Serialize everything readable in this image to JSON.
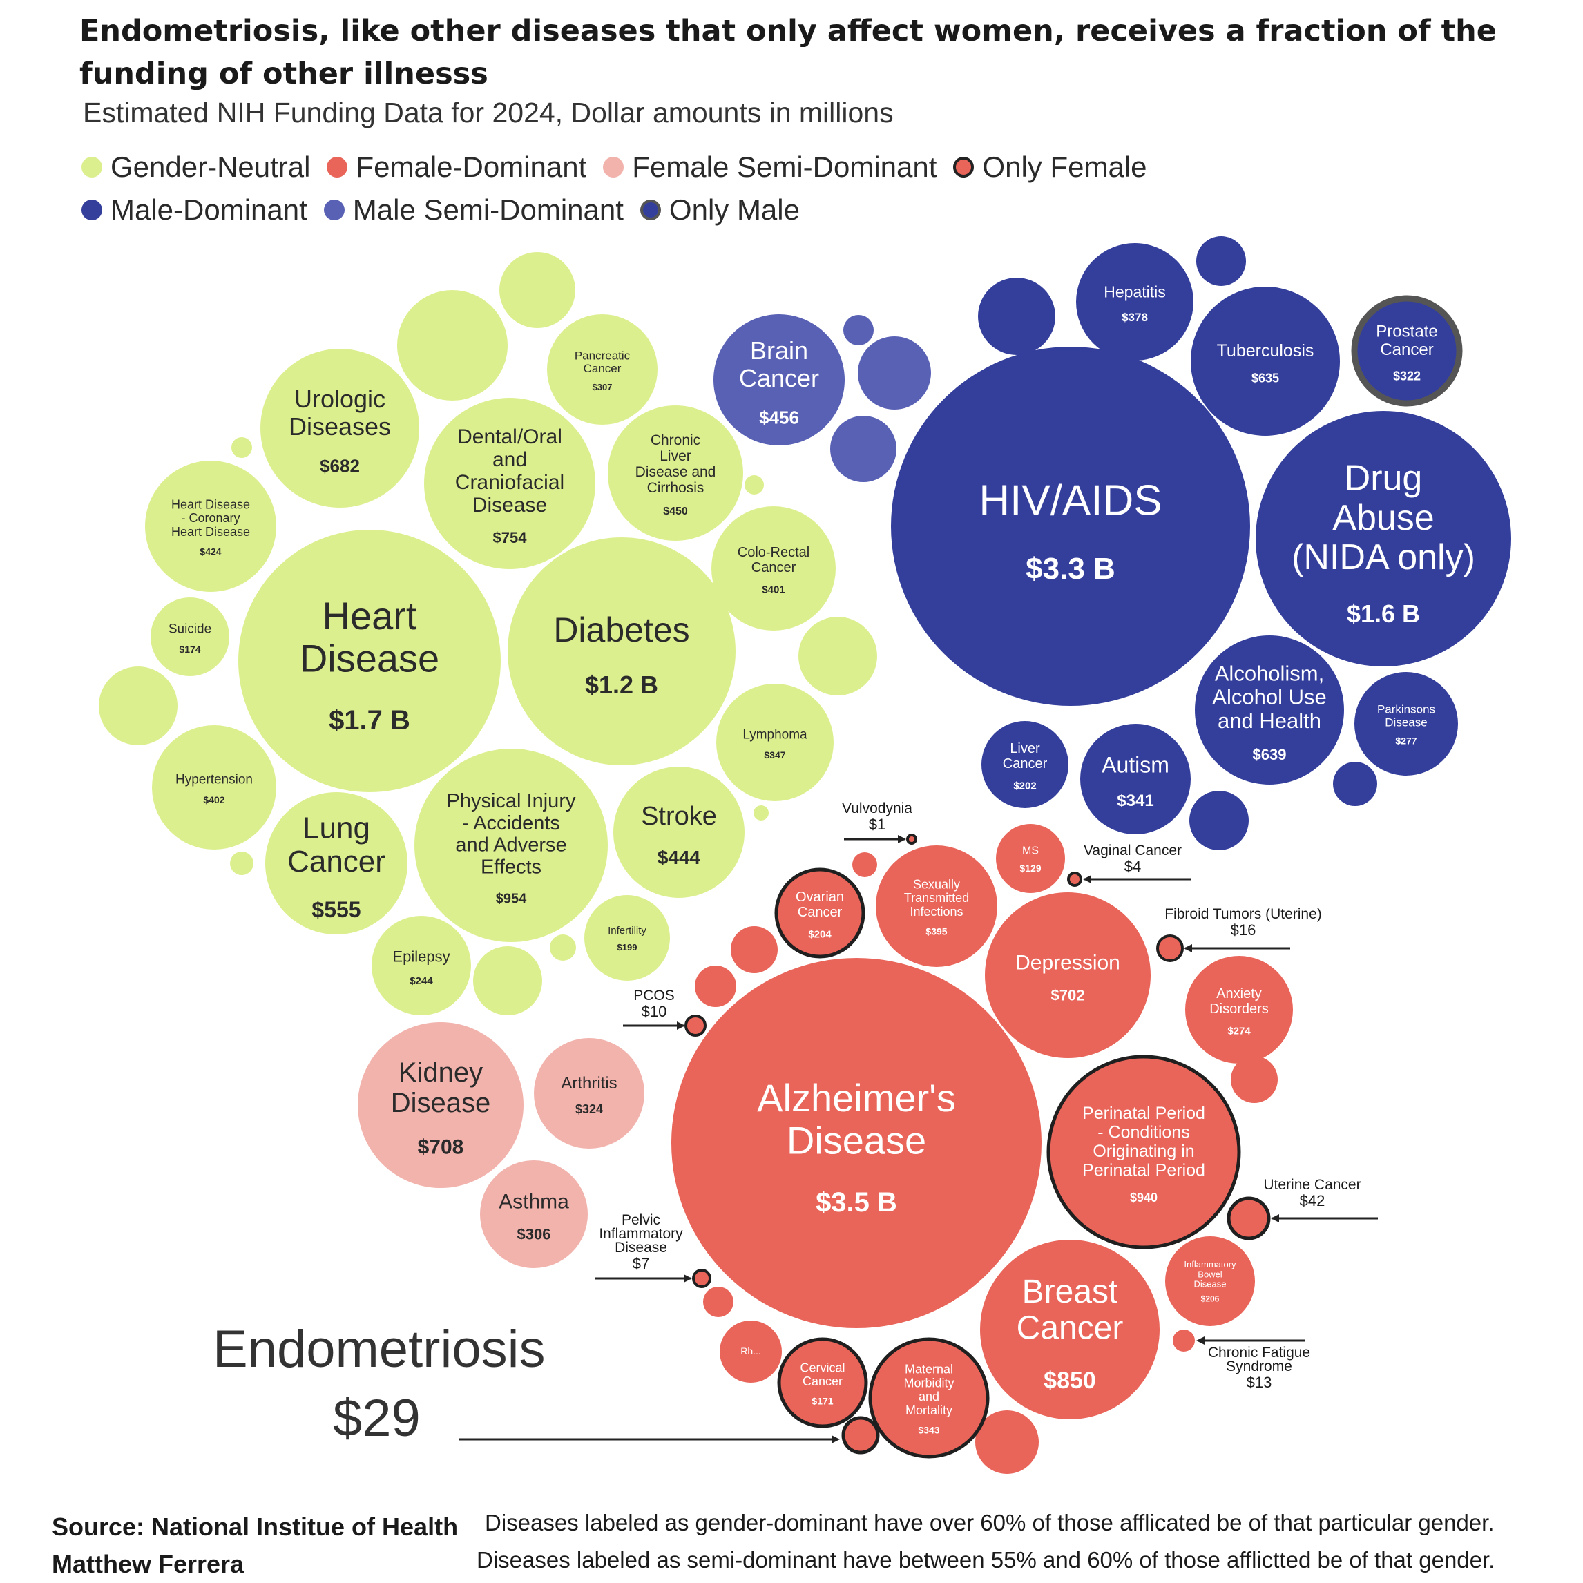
{
  "title": "Endometriosis, like other diseases that only affect women, receives a fraction of the funding of other illnesss",
  "subtitle": "Estimated NIH Funding Data for 2024, Dollar amounts in millions",
  "legend": [
    {
      "key": "gn",
      "label": "Gender-Neutral",
      "color": "#dcef8f"
    },
    {
      "key": "fd",
      "label": "Female-Dominant",
      "color": "#e9655a"
    },
    {
      "key": "fs",
      "label": "Female Semi-Dominant",
      "color": "#f2b3ad"
    },
    {
      "key": "of",
      "label": "Only Female",
      "color": "#e9655a",
      "outline": "#222222"
    },
    {
      "key": "md",
      "label": "Male-Dominant",
      "color": "#343f9c"
    },
    {
      "key": "ms",
      "label": "Male Semi-Dominant",
      "color": "#5961b5"
    },
    {
      "key": "om",
      "label": "Only Male",
      "color": "#343f9c",
      "outline": "#555555"
    }
  ],
  "colors": {
    "gn": "#dcef8f",
    "fd": "#e9655a",
    "fs": "#f2b3ad",
    "of": "#e9655a",
    "md": "#343f9c",
    "ms": "#5961b5",
    "om": "#343f9c",
    "text_dark": "#2b2b2b",
    "text_light": "#ffffff"
  },
  "chart_data": {
    "type": "bubble",
    "title": "Endometriosis, like other diseases that only affect women, receives a fraction of the funding of other illnesss",
    "subtitle": "Estimated NIH Funding Data for 2024, Dollar amounts in millions",
    "unit": "millions USD",
    "categories": [
      "Gender-Neutral",
      "Female-Dominant",
      "Female Semi-Dominant",
      "Only Female",
      "Male-Dominant",
      "Male Semi-Dominant",
      "Only Male"
    ],
    "bubbles": [
      {
        "name": "Heart Disease",
        "value": 1700,
        "value_label": "$1.7 B",
        "cat": "gn"
      },
      {
        "name": "Diabetes",
        "value": 1200,
        "value_label": "$1.2 B",
        "cat": "gn"
      },
      {
        "name": "Physical Injury - Accidents and Adverse Effects",
        "value": 954,
        "value_label": "$954",
        "cat": "gn"
      },
      {
        "name": "Dental/Oral and Craniofacial Disease",
        "value": 754,
        "value_label": "$754",
        "cat": "gn"
      },
      {
        "name": "Urologic Diseases",
        "value": 682,
        "value_label": "$682",
        "cat": "gn"
      },
      {
        "name": "Lung Cancer",
        "value": 555,
        "value_label": "$555",
        "cat": "gn"
      },
      {
        "name": "Chronic Liver Disease and Cirrhosis",
        "value": 450,
        "value_label": "$450",
        "cat": "gn"
      },
      {
        "name": "Stroke",
        "value": 444,
        "value_label": "$444",
        "cat": "gn"
      },
      {
        "name": "Heart Disease - Coronary Heart Disease",
        "value": 424,
        "value_label": "$424",
        "cat": "gn"
      },
      {
        "name": "Hypertension",
        "value": 402,
        "value_label": "$402",
        "cat": "gn"
      },
      {
        "name": "Colo-Rectal Cancer",
        "value": 401,
        "value_label": "$401",
        "cat": "gn"
      },
      {
        "name": "Lymphoma",
        "value": 347,
        "value_label": "$347",
        "cat": "gn"
      },
      {
        "name": "Pancreatic Cancer",
        "value": 307,
        "value_label": "$307",
        "cat": "gn"
      },
      {
        "name": "Epilepsy",
        "value": 244,
        "value_label": "$244",
        "cat": "gn"
      },
      {
        "name": "Infertility",
        "value": 199,
        "value_label": "$199",
        "cat": "gn"
      },
      {
        "name": "Suicide",
        "value": 174,
        "value_label": "$174",
        "cat": "gn"
      },
      {
        "name": "HIV/AIDS",
        "value": 3300,
        "value_label": "$3.3 B",
        "cat": "md"
      },
      {
        "name": "Drug Abuse (NIDA only)",
        "value": 1600,
        "value_label": "$1.6 B",
        "cat": "md"
      },
      {
        "name": "Alcoholism, Alcohol Use and Health",
        "value": 639,
        "value_label": "$639",
        "cat": "md"
      },
      {
        "name": "Tuberculosis",
        "value": 635,
        "value_label": "$635",
        "cat": "md"
      },
      {
        "name": "Hepatitis",
        "value": 378,
        "value_label": "$378",
        "cat": "md"
      },
      {
        "name": "Autism",
        "value": 341,
        "value_label": "$341",
        "cat": "md"
      },
      {
        "name": "Parkinsons Disease",
        "value": 277,
        "value_label": "$277",
        "cat": "md"
      },
      {
        "name": "Liver Cancer",
        "value": 202,
        "value_label": "$202",
        "cat": "md"
      },
      {
        "name": "Prostate Cancer",
        "value": 322,
        "value_label": "$322",
        "cat": "om"
      },
      {
        "name": "Brain Cancer",
        "value": 456,
        "value_label": "$456",
        "cat": "ms"
      },
      {
        "name": "Alzheimer's Disease",
        "value": 3500,
        "value_label": "$3.5 B",
        "cat": "fd"
      },
      {
        "name": "Perinatal Period - Conditions Originating in Perinatal Period",
        "value": 940,
        "value_label": "$940",
        "cat": "of"
      },
      {
        "name": "Breast Cancer",
        "value": 850,
        "value_label": "$850",
        "cat": "fd"
      },
      {
        "name": "Depression",
        "value": 702,
        "value_label": "$702",
        "cat": "fd"
      },
      {
        "name": "Sexually Transmitted Infections",
        "value": 395,
        "value_label": "$395",
        "cat": "fd"
      },
      {
        "name": "Maternal Morbidity and Mortality",
        "value": 343,
        "value_label": "$343",
        "cat": "of"
      },
      {
        "name": "Anxiety Disorders",
        "value": 274,
        "value_label": "$274",
        "cat": "fd"
      },
      {
        "name": "Inflammatory Bowel Disease",
        "value": 206,
        "value_label": "$206",
        "cat": "fd"
      },
      {
        "name": "Ovarian Cancer",
        "value": 204,
        "value_label": "$204",
        "cat": "of"
      },
      {
        "name": "Cervical Cancer",
        "value": 171,
        "value_label": "$171",
        "cat": "of"
      },
      {
        "name": "MS",
        "value": 129,
        "value_label": "$129",
        "cat": "fd"
      },
      {
        "name": "Rh...",
        "value": null,
        "value_label": "",
        "cat": "fd"
      },
      {
        "name": "Uterine Cancer",
        "value": 42,
        "value_label": "$42",
        "cat": "of"
      },
      {
        "name": "Endometriosis",
        "value": 29,
        "value_label": "$29",
        "cat": "of"
      },
      {
        "name": "Fibroid Tumors (Uterine)",
        "value": 16,
        "value_label": "$16",
        "cat": "of"
      },
      {
        "name": "Chronic Fatigue Syndrome",
        "value": 13,
        "value_label": "$13",
        "cat": "fd"
      },
      {
        "name": "PCOS",
        "value": 10,
        "value_label": "$10",
        "cat": "of"
      },
      {
        "name": "Pelvic Inflammatory Disease",
        "value": 7,
        "value_label": "$7",
        "cat": "of"
      },
      {
        "name": "Vaginal Cancer",
        "value": 4,
        "value_label": "$4",
        "cat": "of"
      },
      {
        "name": "Vulvodynia",
        "value": 1,
        "value_label": "$1",
        "cat": "of"
      },
      {
        "name": "Kidney Disease",
        "value": 708,
        "value_label": "$708",
        "cat": "fs"
      },
      {
        "name": "Arthritis",
        "value": 324,
        "value_label": "$324",
        "cat": "fs"
      },
      {
        "name": "Asthma",
        "value": 306,
        "value_label": "$306",
        "cat": "fs"
      }
    ],
    "unlabeled_bubbles": [
      {
        "cat": "gn",
        "count": 11
      },
      {
        "cat": "md",
        "count": 6
      },
      {
        "cat": "ms",
        "count": 3
      },
      {
        "cat": "fd",
        "count": 10
      }
    ]
  },
  "callouts": {
    "endometriosis_name": "Endometriosis",
    "endometriosis_value": "$29"
  },
  "footer": {
    "source": "Source: National Institue of Health",
    "author": "Matthew Ferrera",
    "note1": "Diseases labeled as gender-dominant have over 60% of those afflicated be of that particular gender.",
    "note2": "Diseases labeled as semi-dominant have between 55% and 60% of those afflictted be of that gender."
  }
}
